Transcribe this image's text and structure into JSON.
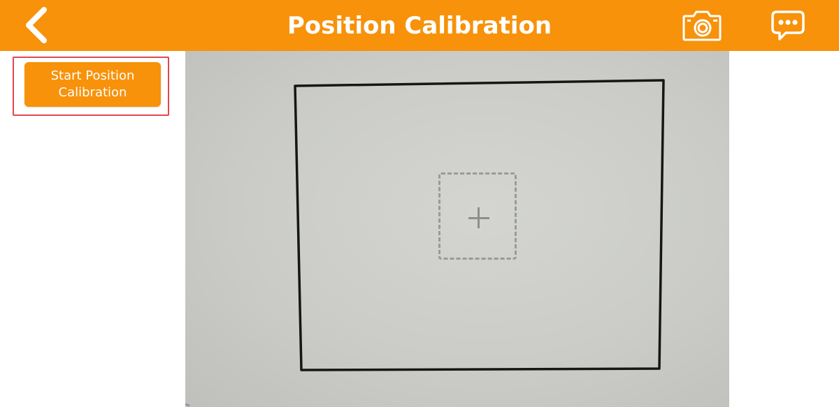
{
  "header": {
    "title": "Position Calibration",
    "back_icon": "chevron-left-icon",
    "camera_icon": "camera-icon",
    "chat_icon": "chat-bubble-icon",
    "background_color": "#f7920a"
  },
  "calibration": {
    "start_button_label": "Start Position Calibration",
    "highlight_color": "#e0484f",
    "target_icon": "plus-icon"
  }
}
